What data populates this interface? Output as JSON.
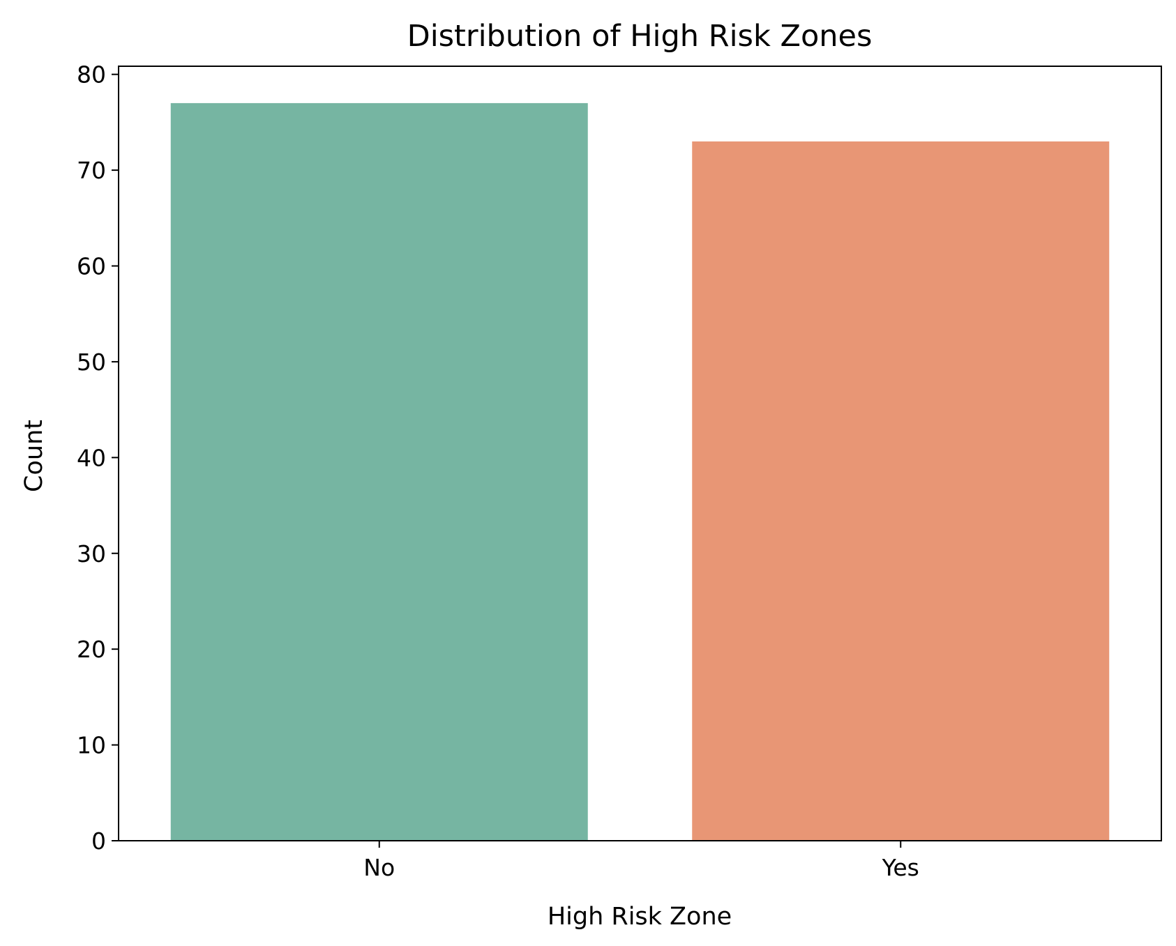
{
  "chart_data": {
    "type": "bar",
    "title": "Distribution of High Risk Zones",
    "xlabel": "High Risk Zone",
    "ylabel": "Count",
    "categories": [
      "No",
      "Yes"
    ],
    "values": [
      77,
      73
    ],
    "bar_colors": [
      "#76b5a2",
      "#e89675"
    ],
    "ylim": [
      0,
      80.85
    ],
    "yticks": [
      0,
      10,
      20,
      30,
      40,
      50,
      60,
      70,
      80
    ],
    "grid": false,
    "legend": "none"
  }
}
